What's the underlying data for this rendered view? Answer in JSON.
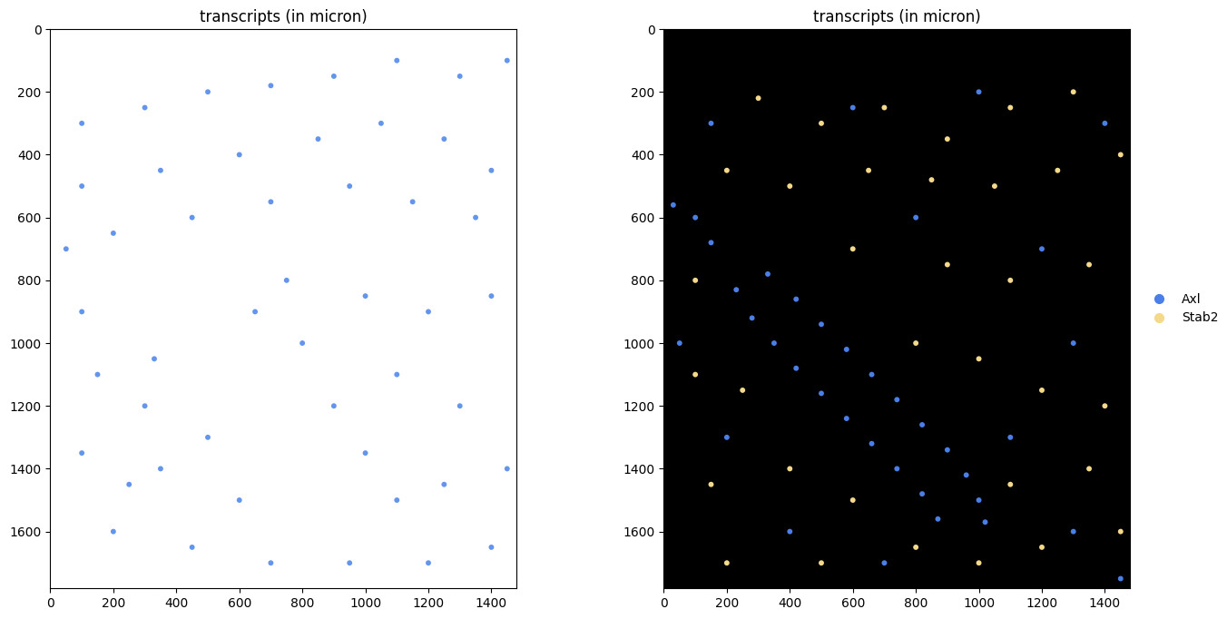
{
  "chart_data": [
    {
      "type": "scatter",
      "title": "transcripts (in micron)",
      "xlim": [
        0,
        1480
      ],
      "ylim": [
        1780,
        0
      ],
      "xticks": [
        0,
        200,
        400,
        600,
        800,
        1000,
        1200,
        1400
      ],
      "yticks": [
        0,
        200,
        400,
        600,
        800,
        1000,
        1200,
        1400,
        1600
      ],
      "series": [
        {
          "color": "#6495ed",
          "x": [
            100,
            300,
            500,
            700,
            900,
            1100,
            1300,
            1450,
            100,
            350,
            600,
            850,
            1050,
            1250,
            1400,
            50,
            200,
            450,
            700,
            950,
            1150,
            1350,
            100,
            150,
            300,
            350,
            100,
            200,
            450,
            600,
            700,
            650,
            800,
            900,
            1000,
            1100,
            950,
            1200,
            1400,
            750,
            1000,
            1200,
            1400,
            1100,
            1300,
            1450,
            1250,
            500,
            330,
            250
          ],
          "y": [
            300,
            250,
            200,
            180,
            150,
            100,
            150,
            100,
            500,
            450,
            400,
            350,
            300,
            350,
            450,
            700,
            650,
            600,
            550,
            500,
            550,
            600,
            900,
            1100,
            1200,
            1400,
            1350,
            1600,
            1650,
            1500,
            1700,
            900,
            1000,
            1200,
            1350,
            1500,
            1700,
            1700,
            1650,
            800,
            850,
            900,
            850,
            1100,
            1200,
            1400,
            1450,
            1300,
            1050,
            1450
          ]
        }
      ]
    },
    {
      "type": "scatter",
      "title": "transcripts (in micron)",
      "xlim": [
        0,
        1480
      ],
      "ylim": [
        1780,
        0
      ],
      "xticks": [
        0,
        200,
        400,
        600,
        800,
        1000,
        1200,
        1400
      ],
      "yticks": [
        0,
        200,
        400,
        600,
        800,
        1000,
        1200,
        1400,
        1600
      ],
      "legend": "right",
      "series": [
        {
          "name": "Axl",
          "color": "#4a7fe8",
          "x": [
            230,
            280,
            350,
            420,
            500,
            580,
            660,
            740,
            820,
            870,
            330,
            420,
            500,
            580,
            660,
            740,
            820,
            900,
            960,
            1000,
            1020,
            150,
            600,
            1000,
            1400,
            100,
            800,
            1200,
            50,
            1300,
            200,
            1100,
            400,
            1300,
            700,
            1450,
            30,
            150
          ],
          "y": [
            830,
            920,
            1000,
            1080,
            1160,
            1240,
            1320,
            1400,
            1480,
            1560,
            780,
            860,
            940,
            1020,
            1100,
            1180,
            1260,
            1340,
            1420,
            1500,
            1570,
            300,
            250,
            200,
            300,
            600,
            600,
            700,
            1000,
            1000,
            1300,
            1300,
            1600,
            1600,
            1700,
            1750,
            560,
            680
          ]
        },
        {
          "name": "Stab2",
          "color": "#f5d98b",
          "x": [
            300,
            500,
            700,
            900,
            1100,
            1300,
            1450,
            200,
            400,
            650,
            850,
            1050,
            1250,
            100,
            600,
            900,
            1100,
            1350,
            100,
            250,
            800,
            1000,
            1200,
            1400,
            150,
            400,
            600,
            1100,
            1350,
            200,
            500,
            800,
            1000,
            1200,
            1450
          ],
          "y": [
            220,
            300,
            250,
            350,
            250,
            200,
            400,
            450,
            500,
            450,
            480,
            500,
            450,
            800,
            700,
            750,
            800,
            750,
            1100,
            1150,
            1000,
            1050,
            1150,
            1200,
            1450,
            1400,
            1500,
            1450,
            1400,
            1700,
            1700,
            1650,
            1700,
            1650,
            1600
          ]
        }
      ]
    }
  ]
}
